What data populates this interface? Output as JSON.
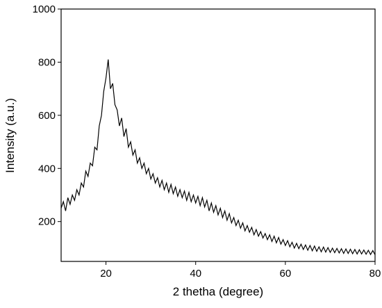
{
  "chart_data": {
    "type": "line",
    "xlabel": "2 thetha (degree)",
    "ylabel": "Intensity (a.u.)",
    "xlim": [
      10,
      80
    ],
    "ylim": [
      50,
      1000
    ],
    "xticks": [
      20,
      40,
      60,
      80
    ],
    "yticks": [
      200,
      400,
      600,
      800,
      1000
    ],
    "series": [
      {
        "color": "#000000",
        "x": [
          10,
          10.5,
          11,
          11.5,
          12,
          12.5,
          13,
          13.5,
          14,
          14.5,
          15,
          15.5,
          16,
          16.5,
          17,
          17.5,
          18,
          18.5,
          19,
          19.5,
          20,
          20.5,
          21,
          21.5,
          22,
          22.5,
          23,
          23.5,
          24,
          24.5,
          25,
          25.5,
          26,
          26.5,
          27,
          27.5,
          28,
          28.5,
          29,
          29.5,
          30,
          30.5,
          31,
          31.5,
          32,
          32.5,
          33,
          33.5,
          34,
          34.5,
          35,
          35.5,
          36,
          36.5,
          37,
          37.5,
          38,
          38.5,
          39,
          39.5,
          40,
          40.5,
          41,
          41.5,
          42,
          42.5,
          43,
          43.5,
          44,
          44.5,
          45,
          45.5,
          46,
          46.5,
          47,
          47.5,
          48,
          48.5,
          49,
          49.5,
          50,
          50.5,
          51,
          51.5,
          52,
          52.5,
          53,
          53.5,
          54,
          54.5,
          55,
          55.5,
          56,
          56.5,
          57,
          57.5,
          58,
          58.5,
          59,
          59.5,
          60,
          60.5,
          61,
          61.5,
          62,
          62.5,
          63,
          63.5,
          64,
          64.5,
          65,
          65.5,
          66,
          66.5,
          67,
          67.5,
          68,
          68.5,
          69,
          69.5,
          70,
          70.5,
          71,
          71.5,
          72,
          72.5,
          73,
          73.5,
          74,
          74.5,
          75,
          75.5,
          76,
          76.5,
          77,
          77.5,
          78,
          78.5,
          79,
          79.5,
          80
        ],
        "values": [
          250,
          275,
          240,
          290,
          265,
          300,
          280,
          320,
          300,
          345,
          330,
          390,
          370,
          420,
          410,
          480,
          470,
          560,
          600,
          690,
          740,
          810,
          700,
          720,
          640,
          620,
          560,
          590,
          520,
          550,
          480,
          500,
          450,
          470,
          420,
          440,
          400,
          420,
          380,
          400,
          360,
          380,
          345,
          365,
          330,
          355,
          320,
          345,
          310,
          340,
          305,
          330,
          295,
          320,
          290,
          315,
          280,
          310,
          275,
          300,
          270,
          295,
          260,
          290,
          255,
          280,
          240,
          270,
          235,
          260,
          225,
          250,
          215,
          240,
          205,
          230,
          195,
          215,
          185,
          205,
          175,
          195,
          165,
          185,
          160,
          178,
          150,
          170,
          145,
          162,
          138,
          155,
          132,
          150,
          125,
          145,
          120,
          140,
          115,
          132,
          110,
          128,
          105,
          122,
          100,
          118,
          98,
          115,
          95,
          112,
          92,
          110,
          90,
          108,
          88,
          105,
          86,
          104,
          85,
          102,
          84,
          100,
          83,
          99,
          82,
          98,
          80,
          97,
          80,
          96,
          79,
          95,
          78,
          94,
          78,
          93,
          77,
          92,
          76,
          91,
          75
        ]
      }
    ]
  }
}
